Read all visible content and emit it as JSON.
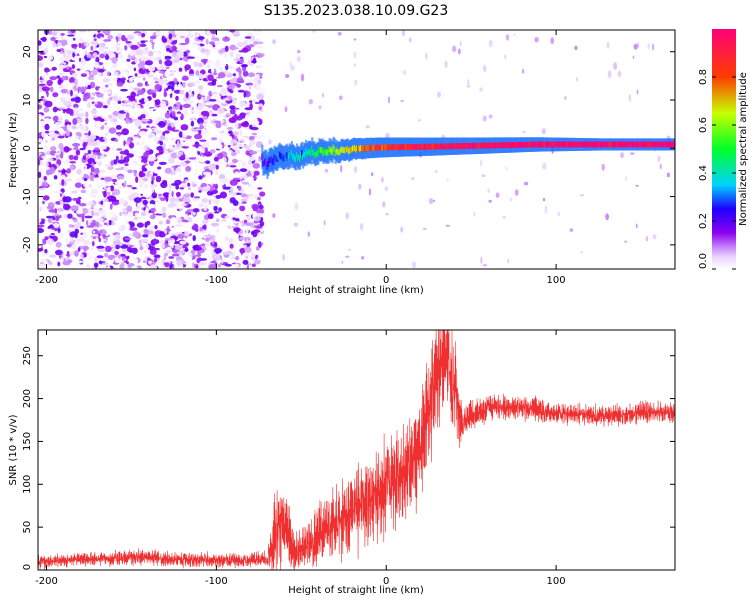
{
  "title": "S135.2023.038.10.09.G23",
  "chart_data": [
    {
      "type": "heatmap",
      "xlabel": "Height of straight line (km)",
      "ylabel": "Frequency (Hz)",
      "xlim": [
        -205,
        170
      ],
      "ylim": [
        -25,
        24.5
      ],
      "xticks": [
        -200,
        -100,
        0,
        100
      ],
      "yticks": [
        -20,
        -10,
        0,
        10,
        20
      ],
      "colorbar": {
        "label": "Normalized spectral amplitude",
        "range": [
          0,
          1
        ],
        "ticks": [
          0.0,
          0.2,
          0.4,
          0.6,
          0.8
        ]
      },
      "regions": [
        {
          "x_range": [
            -205,
            -73
          ],
          "pattern": "broadband noise, amplitude up to ~0.15"
        },
        {
          "x_range": [
            -73,
            170
          ],
          "pattern": "narrow band near 0 Hz, rising from ~-3 Hz to ~+1 Hz, amplitude ~0.3 to 1.0"
        }
      ],
      "signal_ridge": {
        "x": [
          -73,
          -60,
          -45,
          -30,
          -15,
          0,
          20,
          50,
          90,
          130,
          170
        ],
        "y": [
          -3,
          -2,
          -1,
          -0.5,
          0,
          0.2,
          0.3,
          0.5,
          0.8,
          0.8,
          0.8
        ],
        "amplitude": [
          0.2,
          0.3,
          0.45,
          0.6,
          0.75,
          0.85,
          0.9,
          0.95,
          1.0,
          1.0,
          1.0
        ]
      }
    },
    {
      "type": "line",
      "xlabel": "Height of straight line (km)",
      "ylabel": "SNR (10 * v/v)",
      "xlim": [
        -205,
        170
      ],
      "ylim": [
        0,
        280
      ],
      "xticks": [
        -200,
        -100,
        0,
        100
      ],
      "yticks": [
        0,
        50,
        100,
        150,
        200,
        250
      ],
      "color": "#f03030",
      "series": [
        {
          "x": [
            -205,
            -180,
            -150,
            -120,
            -90,
            -70,
            -65,
            -60,
            -55,
            -50,
            -40,
            -30,
            -20,
            -10,
            0,
            10,
            20,
            25,
            30,
            35,
            40,
            45,
            50,
            60,
            80,
            100,
            120,
            140,
            160,
            170
          ],
          "y": [
            10,
            12,
            15,
            12,
            11,
            12,
            40,
            70,
            20,
            25,
            40,
            55,
            70,
            80,
            95,
            110,
            140,
            190,
            230,
            260,
            210,
            170,
            180,
            190,
            190,
            183,
            180,
            181,
            185,
            183
          ],
          "spread": [
            8,
            8,
            9,
            8,
            8,
            10,
            50,
            45,
            25,
            20,
            35,
            45,
            45,
            50,
            55,
            55,
            60,
            70,
            70,
            55,
            60,
            20,
            18,
            15,
            15,
            12,
            12,
            12,
            12,
            12
          ]
        }
      ]
    }
  ]
}
